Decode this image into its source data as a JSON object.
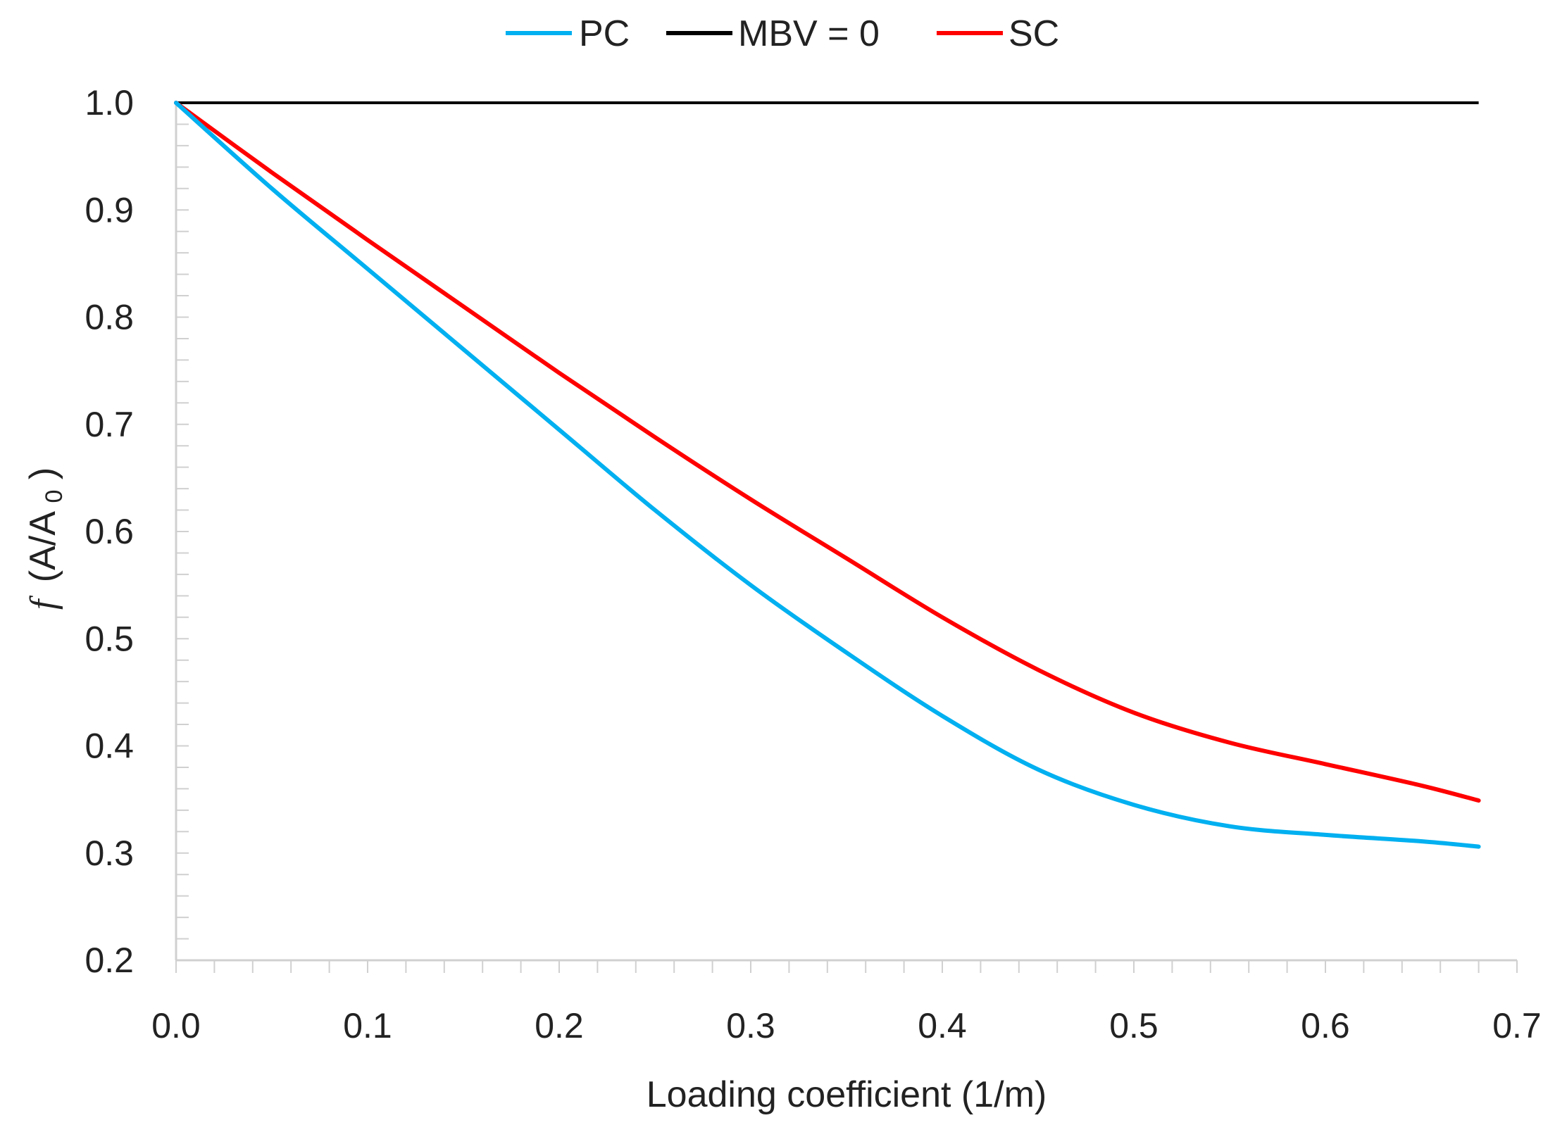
{
  "chart_data": {
    "type": "line",
    "title": "",
    "xlabel": "Loading coefficient (1/m)",
    "ylabel_prefix": "f",
    "ylabel_main": "(A/A",
    "ylabel_sub": "0",
    "ylabel_suffix": ")",
    "xlim": [
      0.0,
      0.7
    ],
    "ylim": [
      0.2,
      1.0
    ],
    "xticks": [
      "0.0",
      "0.1",
      "0.2",
      "0.3",
      "0.4",
      "0.5",
      "0.6",
      "0.7"
    ],
    "yticks": [
      "0.2",
      "0.3",
      "0.4",
      "0.5",
      "0.6",
      "0.7",
      "0.8",
      "0.9",
      "1.0"
    ],
    "grid": false,
    "legend_position": "top-center",
    "series": [
      {
        "name": "PC",
        "color": "#00b0f0",
        "x": [
          0.0,
          0.05,
          0.1,
          0.15,
          0.2,
          0.25,
          0.3,
          0.35,
          0.4,
          0.45,
          0.5,
          0.55,
          0.6,
          0.65,
          0.68
        ],
        "y": [
          1.0,
          0.92,
          0.845,
          0.77,
          0.695,
          0.62,
          0.55,
          0.487,
          0.428,
          0.378,
          0.345,
          0.325,
          0.317,
          0.311,
          0.306
        ]
      },
      {
        "name": "MBV = 0",
        "color": "#000000",
        "x": [
          0.0,
          0.68
        ],
        "y": [
          1.0,
          1.0
        ]
      },
      {
        "name": "SC",
        "color": "#ff0000",
        "x": [
          0.0,
          0.05,
          0.1,
          0.15,
          0.2,
          0.25,
          0.3,
          0.35,
          0.4,
          0.45,
          0.5,
          0.55,
          0.6,
          0.65,
          0.68
        ],
        "y": [
          1.0,
          0.935,
          0.872,
          0.81,
          0.748,
          0.688,
          0.63,
          0.575,
          0.52,
          0.471,
          0.431,
          0.403,
          0.383,
          0.363,
          0.349
        ]
      }
    ]
  }
}
